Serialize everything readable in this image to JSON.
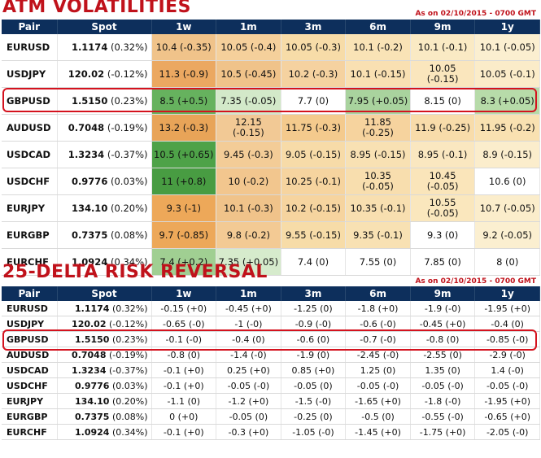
{
  "atm": {
    "title": "ATM VOLATILITIES",
    "as_of": "As on 02/10/2015 - 0700 GMT",
    "headers": [
      "Pair",
      "Spot",
      "1w",
      "1m",
      "3m",
      "6m",
      "9m",
      "1y"
    ],
    "rows": [
      {
        "pair": "EURUSD",
        "spot": "1.1174",
        "chg": "(0.32%)",
        "cells": [
          "10.4 (-0.35)",
          "10.05 (-0.4)",
          "10.05 (-0.3)",
          "10.1 (-0.2)",
          "10.1 (-0.1)",
          "10.1 (-0.05)"
        ]
      },
      {
        "pair": "USDJPY",
        "spot": "120.02",
        "chg": "(-0.12%)",
        "cells": [
          "11.3 (-0.9)",
          "10.5 (-0.45)",
          "10.2 (-0.3)",
          "10.1 (-0.15)",
          "10.05 (-0.15)",
          "10.05 (-0.1)"
        ]
      },
      {
        "pair": "GBPUSD",
        "spot": "1.5150",
        "chg": "(0.23%)",
        "cells": [
          "8.5 (+0.5)",
          "7.35 (-0.05)",
          "7.7 (0)",
          "7.95 (+0.05)",
          "8.15 (0)",
          "8.3 (+0.05)"
        ]
      },
      {
        "pair": "AUDUSD",
        "spot": "0.7048",
        "chg": "(-0.19%)",
        "cells": [
          "13.2 (-0.3)",
          "12.15 (-0.15)",
          "11.75 (-0.3)",
          "11.85 (-0.25)",
          "11.9 (-0.25)",
          "11.95 (-0.2)"
        ]
      },
      {
        "pair": "USDCAD",
        "spot": "1.3234",
        "chg": "(-0.37%)",
        "cells": [
          "10.5 (+0.65)",
          "9.45 (-0.3)",
          "9.05 (-0.15)",
          "8.95 (-0.15)",
          "8.95 (-0.1)",
          "8.9 (-0.15)"
        ]
      },
      {
        "pair": "USDCHF",
        "spot": "0.9776",
        "chg": "(0.03%)",
        "cells": [
          "11 (+0.8)",
          "10 (-0.2)",
          "10.25 (-0.1)",
          "10.35 (-0.05)",
          "10.45 (-0.05)",
          "10.6 (0)"
        ]
      },
      {
        "pair": "EURJPY",
        "spot": "134.10",
        "chg": "(0.20%)",
        "cells": [
          "9.3 (-1)",
          "10.1 (-0.3)",
          "10.2 (-0.15)",
          "10.35 (-0.1)",
          "10.55 (-0.05)",
          "10.7 (-0.05)"
        ]
      },
      {
        "pair": "EURGBP",
        "spot": "0.7375",
        "chg": "(0.08%)",
        "cells": [
          "9.7 (-0.85)",
          "9.8 (-0.2)",
          "9.55 (-0.15)",
          "9.35 (-0.1)",
          "9.3 (0)",
          "9.2 (-0.05)"
        ]
      },
      {
        "pair": "EURCHF",
        "spot": "1.0924",
        "chg": "(0.34%)",
        "cells": [
          "7.4 (+0.2)",
          "7.35 (+0.05)",
          "7.4 (0)",
          "7.55 (0)",
          "7.85 (0)",
          "8 (0)"
        ]
      }
    ]
  },
  "rr": {
    "title": "25-DELTA RISK REVERSAL",
    "as_of": "As on 02/10/2015 - 0700 GMT",
    "headers": [
      "Pair",
      "Spot",
      "1w",
      "1m",
      "3m",
      "6m",
      "9m",
      "1y"
    ],
    "rows": [
      {
        "pair": "EURUSD",
        "spot": "1.1174",
        "chg": "(0.32%)",
        "cells": [
          "-0.15 (+0)",
          "-0.45 (+0)",
          "-1.25 (0)",
          "-1.8 (+0)",
          "-1.9 (-0)",
          "-1.95 (+0)"
        ]
      },
      {
        "pair": "USDJPY",
        "spot": "120.02",
        "chg": "(-0.12%)",
        "cells": [
          "-0.65 (-0)",
          "-1 (-0)",
          "-0.9 (-0)",
          "-0.6 (-0)",
          "-0.45 (+0)",
          "-0.4 (0)"
        ]
      },
      {
        "pair": "GBPUSD",
        "spot": "1.5150",
        "chg": "(0.23%)",
        "cells": [
          "-0.1 (-0)",
          "-0.4 (0)",
          "-0.6 (0)",
          "-0.7 (-0)",
          "-0.8 (0)",
          "-0.85 (-0)"
        ]
      },
      {
        "pair": "AUDUSD",
        "spot": "0.7048",
        "chg": "(-0.19%)",
        "cells": [
          "-0.8 (0)",
          "-1.4 (-0)",
          "-1.9 (0)",
          "-2.45 (-0)",
          "-2.55 (0)",
          "-2.9 (-0)"
        ]
      },
      {
        "pair": "USDCAD",
        "spot": "1.3234",
        "chg": "(-0.37%)",
        "cells": [
          "-0.1 (+0)",
          "0.25 (+0)",
          "0.85 (+0)",
          "1.25 (0)",
          "1.35 (0)",
          "1.4 (-0)"
        ]
      },
      {
        "pair": "USDCHF",
        "spot": "0.9776",
        "chg": "(0.03%)",
        "cells": [
          "-0.1 (+0)",
          "-0.05 (-0)",
          "-0.05 (0)",
          "-0.05 (-0)",
          "-0.05 (-0)",
          "-0.05 (-0)"
        ]
      },
      {
        "pair": "EURJPY",
        "spot": "134.10",
        "chg": "(0.20%)",
        "cells": [
          "-1.1 (0)",
          "-1.2 (+0)",
          "-1.5 (-0)",
          "-1.65 (+0)",
          "-1.8 (-0)",
          "-1.95 (+0)"
        ]
      },
      {
        "pair": "EURGBP",
        "spot": "0.7375",
        "chg": "(0.08%)",
        "cells": [
          "0 (+0)",
          "-0.05 (0)",
          "-0.25 (0)",
          "-0.5 (0)",
          "-0.55 (-0)",
          "-0.65 (+0)"
        ]
      },
      {
        "pair": "EURCHF",
        "spot": "1.0924",
        "chg": "(0.34%)",
        "cells": [
          "-0.1 (+0)",
          "-0.3 (+0)",
          "-1.05 (-0)",
          "-1.45 (+0)",
          "-1.75 (+0)",
          "-2.05 (-0)"
        ]
      }
    ]
  },
  "heat_colors": [
    [
      "#f0c38a",
      "#f5d09b",
      "#f7dca8",
      "#f9e3b6",
      "#faeac4",
      "#fbefd0"
    ],
    [
      "#eba861",
      "#f0c38a",
      "#f5d2a0",
      "#f9e0b2",
      "#fae6bd",
      "#fbecc9"
    ],
    [
      "#66b25e",
      "#d3e9c9",
      "#ffffff",
      "#a9d39e",
      "#ffffff",
      "#b7dba9"
    ],
    [
      "#e8a458",
      "#f2c995",
      "#f4ca8d",
      "#f6d39e",
      "#f8dcaa",
      "#f9e1b1"
    ],
    [
      "#4ea248",
      "#f3cc97",
      "#f7dba8",
      "#f8e1b3",
      "#fae7c0",
      "#fbedcc"
    ],
    [
      "#489c42",
      "#f2c68e",
      "#f6d49f",
      "#f8deae",
      "#fae5ba",
      "#ffffff"
    ],
    [
      "#eda859",
      "#f0c38a",
      "#f6d49f",
      "#f8dfb0",
      "#fae7bd",
      "#fbedcb"
    ],
    [
      "#eda859",
      "#f3ca94",
      "#f7dca8",
      "#f8e1b3",
      "#ffffff",
      "#fbefd0"
    ],
    [
      "#a0cf92",
      "#d6ebcc",
      "#ffffff",
      "#ffffff",
      "#ffffff",
      "#ffffff"
    ]
  ]
}
